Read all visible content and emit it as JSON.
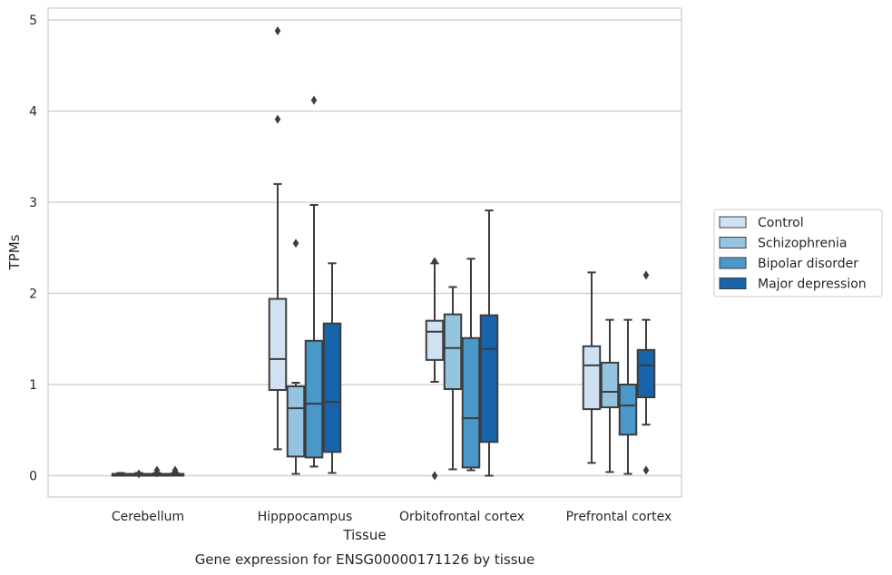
{
  "chart_data": {
    "type": "box",
    "title": "Gene expression for ENSG00000171126 by tissue",
    "xlabel": "Tissue",
    "ylabel": "TPMs",
    "ylim": [
      -0.23,
      5.13
    ],
    "yticks": [
      0,
      1,
      2,
      3,
      4,
      5
    ],
    "grid": "horizontal",
    "legend_position": "right",
    "categories": [
      "Cerebellum",
      "Hipppocampus",
      "Orbitofrontal cortex",
      "Prefrontal cortex"
    ],
    "series": [
      {
        "name": "Control",
        "color": "#d0e1f2",
        "boxes": [
          {
            "whisker_low": 0.0,
            "q1": 0.0,
            "median": 0.01,
            "q3": 0.02,
            "whisker_high": 0.03,
            "outliers": []
          },
          {
            "whisker_low": 0.29,
            "q1": 0.94,
            "median": 1.28,
            "q3": 1.94,
            "whisker_high": 3.2,
            "outliers": [
              3.91,
              4.88
            ]
          },
          {
            "whisker_low": 1.03,
            "q1": 1.27,
            "median": 1.58,
            "q3": 1.7,
            "whisker_high": 2.33,
            "outliers": [
              2.35,
              0.0
            ]
          },
          {
            "whisker_low": 0.14,
            "q1": 0.73,
            "median": 1.21,
            "q3": 1.42,
            "whisker_high": 2.23,
            "outliers": []
          }
        ]
      },
      {
        "name": "Schizophrenia",
        "color": "#94c4df",
        "boxes": [
          {
            "whisker_low": 0.0,
            "q1": 0.0,
            "median": 0.01,
            "q3": 0.02,
            "whisker_high": 0.03,
            "outliers": [
              0.02
            ]
          },
          {
            "whisker_low": 0.02,
            "q1": 0.21,
            "median": 0.74,
            "q3": 0.98,
            "whisker_high": 1.02,
            "outliers": [
              2.55
            ]
          },
          {
            "whisker_low": 0.07,
            "q1": 0.95,
            "median": 1.4,
            "q3": 1.77,
            "whisker_high": 2.07,
            "outliers": []
          },
          {
            "whisker_low": 0.04,
            "q1": 0.75,
            "median": 0.92,
            "q3": 1.24,
            "whisker_high": 1.71,
            "outliers": []
          }
        ]
      },
      {
        "name": "Bipolar disorder",
        "color": "#4a98c9",
        "boxes": [
          {
            "whisker_low": 0.0,
            "q1": 0.0,
            "median": 0.01,
            "q3": 0.02,
            "whisker_high": 0.03,
            "outliers": [
              0.03,
              0.06
            ]
          },
          {
            "whisker_low": 0.1,
            "q1": 0.2,
            "median": 0.79,
            "q3": 1.48,
            "whisker_high": 2.97,
            "outliers": [
              4.12
            ]
          },
          {
            "whisker_low": 0.06,
            "q1": 0.09,
            "median": 0.63,
            "q3": 1.51,
            "whisker_high": 2.38,
            "outliers": []
          },
          {
            "whisker_low": 0.02,
            "q1": 0.45,
            "median": 0.77,
            "q3": 1.0,
            "whisker_high": 1.71,
            "outliers": []
          }
        ]
      },
      {
        "name": "Major depression",
        "color": "#1764ab",
        "boxes": [
          {
            "whisker_low": 0.0,
            "q1": 0.0,
            "median": 0.01,
            "q3": 0.02,
            "whisker_high": 0.03,
            "outliers": [
              0.04,
              0.06
            ]
          },
          {
            "whisker_low": 0.03,
            "q1": 0.26,
            "median": 0.81,
            "q3": 1.67,
            "whisker_high": 2.33,
            "outliers": []
          },
          {
            "whisker_low": 0.0,
            "q1": 0.37,
            "median": 1.39,
            "q3": 1.76,
            "whisker_high": 2.91,
            "outliers": []
          },
          {
            "whisker_low": 0.56,
            "q1": 0.86,
            "median": 1.21,
            "q3": 1.38,
            "whisker_high": 1.71,
            "outliers": [
              2.2,
              0.06
            ]
          }
        ]
      }
    ]
  }
}
